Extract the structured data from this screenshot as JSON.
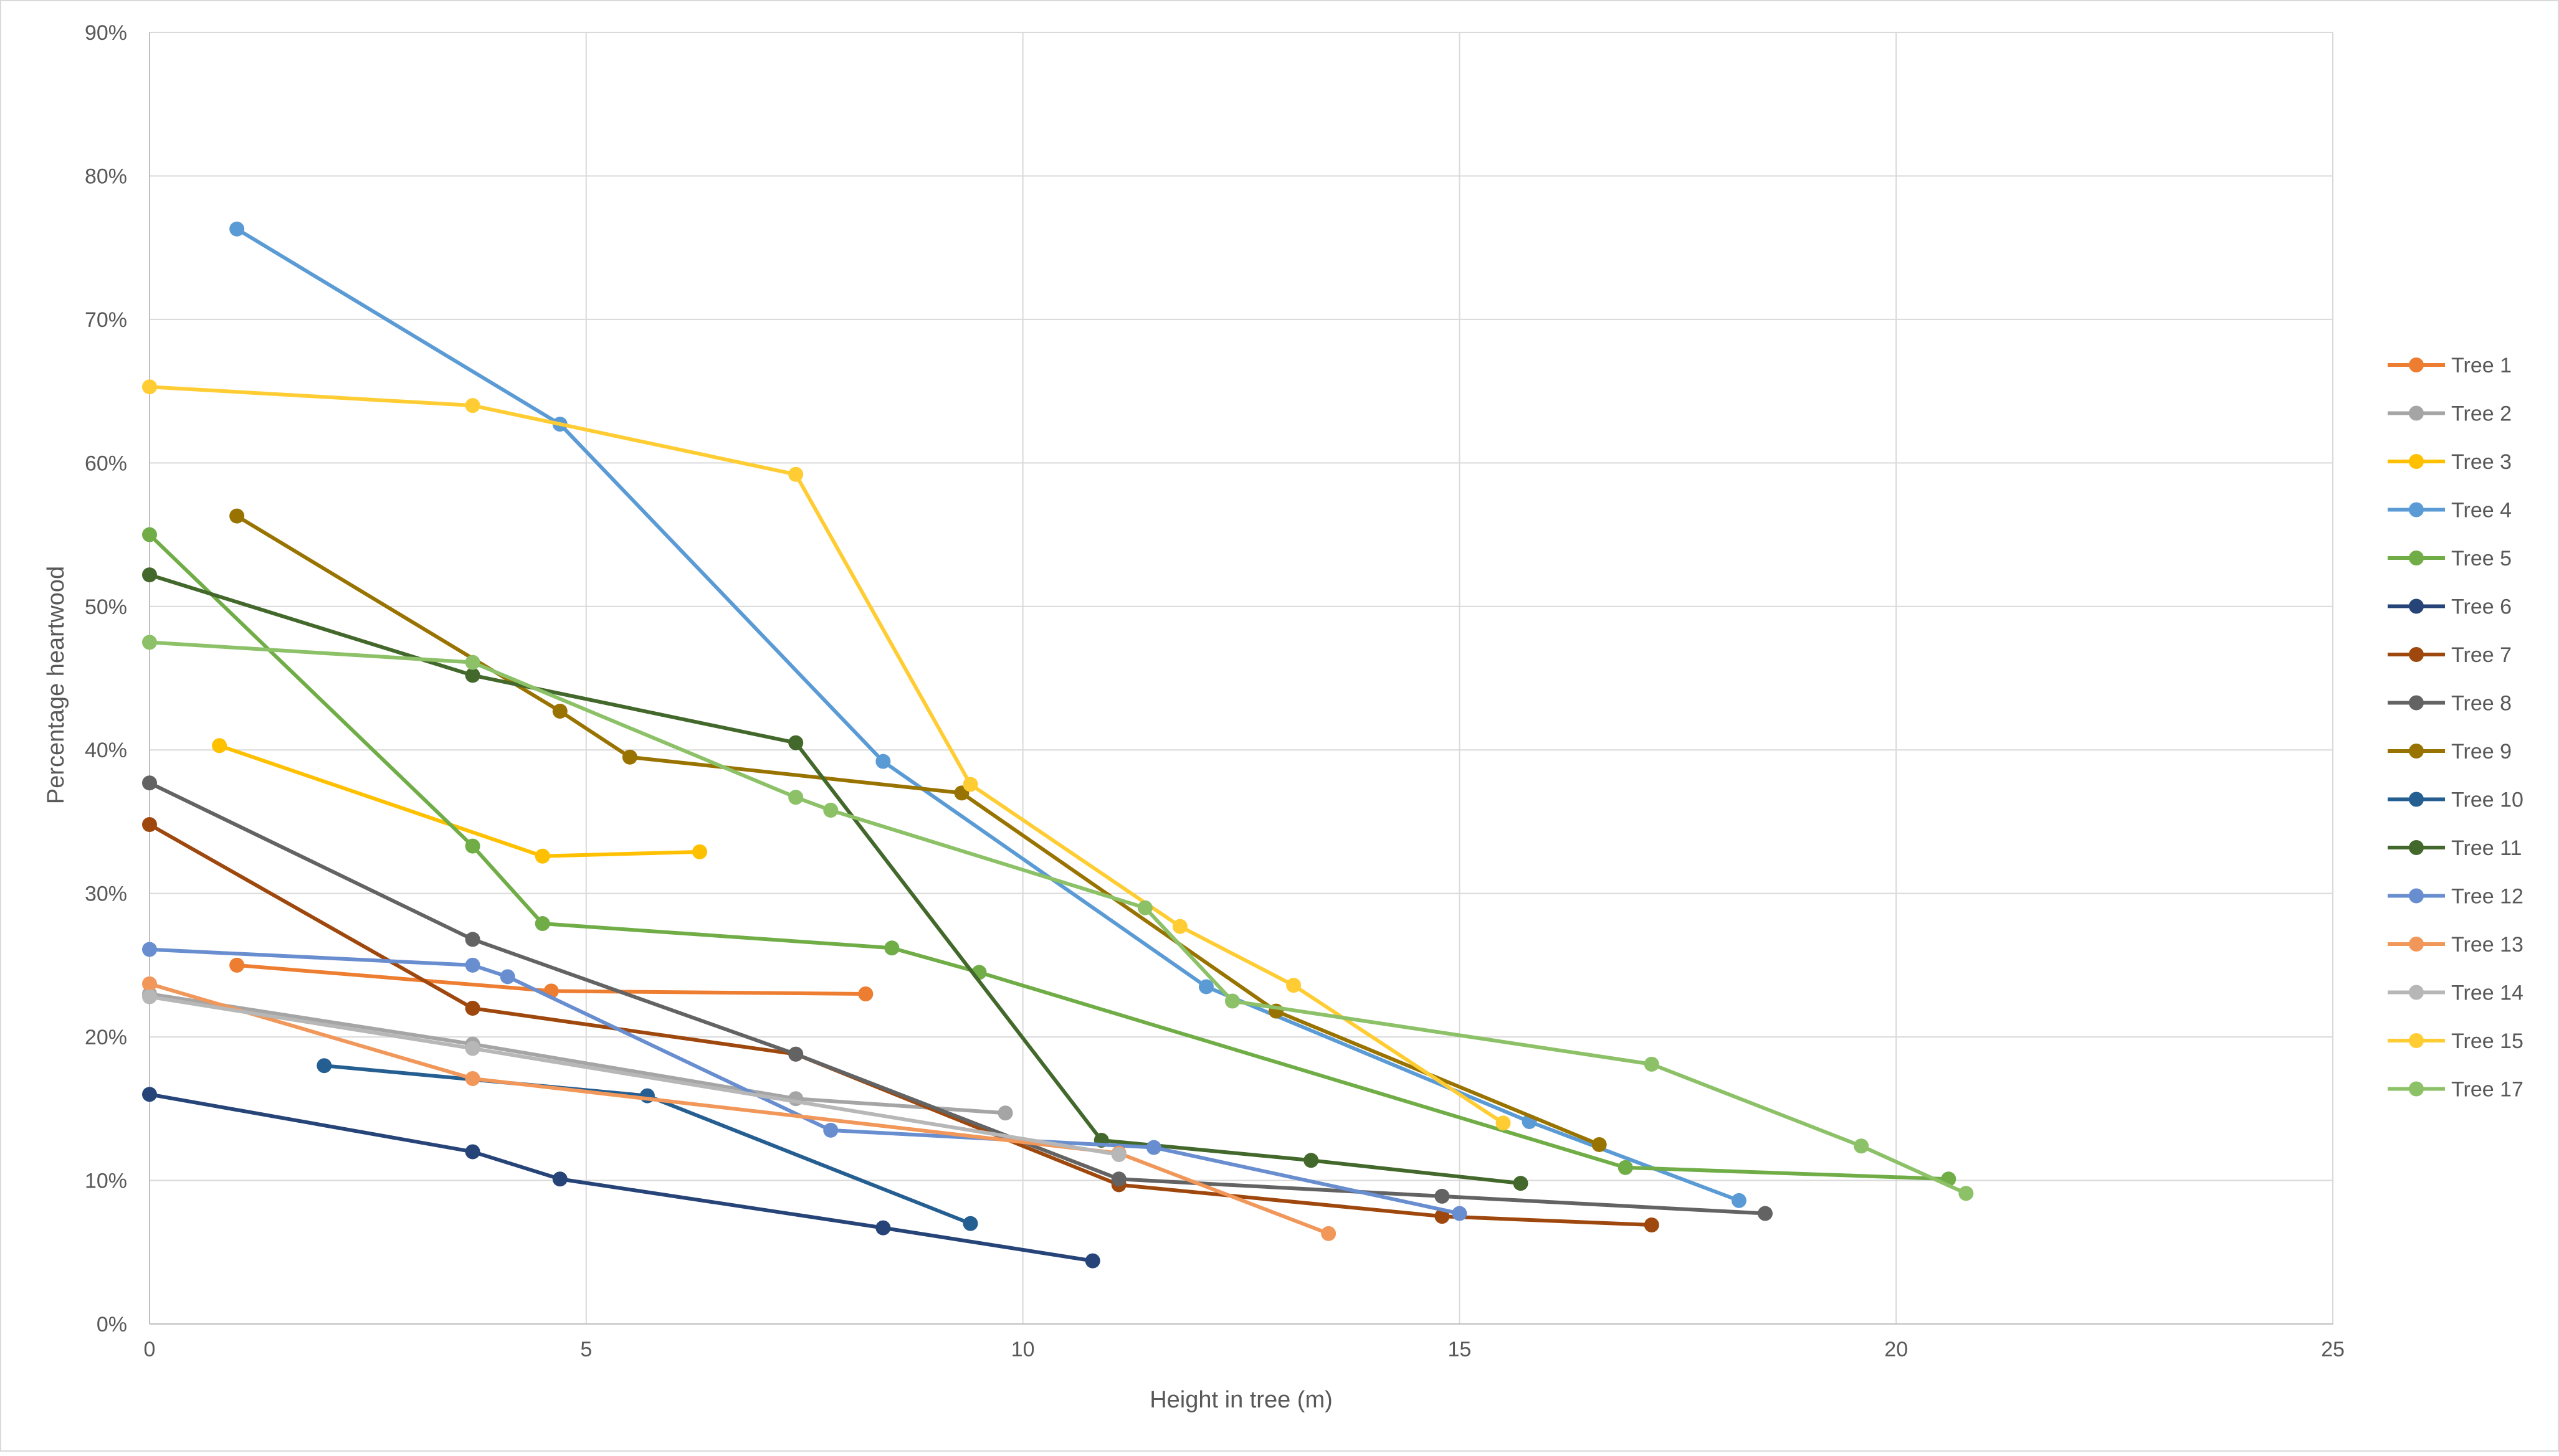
{
  "chart_data": {
    "type": "line",
    "title": "",
    "xlabel": "Height in tree (m)",
    "ylabel": "Percentage heartwood",
    "xlim": [
      0,
      25
    ],
    "ylim": [
      0,
      90
    ],
    "x_ticks": [
      0,
      5,
      10,
      15,
      20,
      25
    ],
    "y_ticks": [
      0,
      10,
      20,
      30,
      40,
      50,
      60,
      70,
      80,
      90
    ],
    "y_tick_labels": [
      "0%",
      "10%",
      "20%",
      "30%",
      "40%",
      "50%",
      "60%",
      "70%",
      "80%",
      "90%"
    ],
    "grid": true,
    "legend_position": "right",
    "series": [
      {
        "name": "Tree 1",
        "color": "#ED7D31",
        "x": [
          1,
          4.6,
          8.2
        ],
        "y": [
          25,
          23.2,
          23
        ]
      },
      {
        "name": "Tree 2",
        "color": "#A5A5A5",
        "x": [
          0,
          3.7,
          7.4,
          9.8
        ],
        "y": [
          23,
          19.5,
          15.7,
          14.7
        ]
      },
      {
        "name": "Tree 3",
        "color": "#FFC000",
        "x": [
          0.8,
          4.5,
          6.3
        ],
        "y": [
          40.3,
          32.6,
          32.9
        ]
      },
      {
        "name": "Tree 4",
        "color": "#5B9BD5",
        "x": [
          1,
          4.7,
          8.4,
          12.1,
          15.8,
          18.2
        ],
        "y": [
          76.3,
          62.7,
          39.2,
          23.5,
          14.1,
          8.6
        ]
      },
      {
        "name": "Tree 5",
        "color": "#70AD47",
        "x": [
          0,
          3.7,
          4.5,
          8.5,
          9.5,
          16.9,
          20.6
        ],
        "y": [
          55,
          33.3,
          27.9,
          26.2,
          24.5,
          10.9,
          10.1
        ]
      },
      {
        "name": "Tree 6",
        "color": "#264478",
        "x": [
          0,
          3.7,
          4.7,
          8.4,
          10.8
        ],
        "y": [
          16,
          12,
          10.1,
          6.7,
          4.4
        ]
      },
      {
        "name": "Tree 7",
        "color": "#9E480E",
        "x": [
          0,
          3.7,
          7.4,
          11.1,
          14.8,
          17.2
        ],
        "y": [
          34.8,
          22,
          18.8,
          9.7,
          7.5,
          6.9
        ]
      },
      {
        "name": "Tree 8",
        "color": "#636363",
        "x": [
          0,
          3.7,
          7.4,
          11.1,
          14.8,
          18.5
        ],
        "y": [
          37.7,
          26.8,
          18.8,
          10.1,
          8.9,
          7.7
        ]
      },
      {
        "name": "Tree 9",
        "color": "#997300",
        "x": [
          1,
          4.7,
          5.5,
          9.3,
          12.9,
          16.6
        ],
        "y": [
          56.3,
          42.7,
          39.5,
          37,
          21.8,
          12.5
        ]
      },
      {
        "name": "Tree 10",
        "color": "#255E91",
        "x": [
          2,
          5.7,
          9.4
        ],
        "y": [
          18,
          15.9,
          7
        ]
      },
      {
        "name": "Tree 11",
        "color": "#43682B",
        "x": [
          0,
          3.7,
          7.4,
          10.9,
          13.3,
          15.7
        ],
        "y": [
          52.2,
          45.2,
          40.5,
          12.8,
          11.4,
          9.8
        ]
      },
      {
        "name": "Tree 12",
        "color": "#698ED0",
        "x": [
          0,
          3.7,
          4.1,
          7.8,
          11.5,
          15
        ],
        "y": [
          26.1,
          25,
          24.2,
          13.5,
          12.3,
          7.7
        ]
      },
      {
        "name": "Tree 13",
        "color": "#F1975A",
        "x": [
          0,
          3.7,
          11.1,
          13.5
        ],
        "y": [
          23.7,
          17.1,
          11.9,
          6.3
        ]
      },
      {
        "name": "Tree 14",
        "color": "#B7B7B7",
        "x": [
          0,
          3.7,
          11.1
        ],
        "y": [
          22.8,
          19.2,
          11.8
        ]
      },
      {
        "name": "Tree 15",
        "color": "#FFCD33",
        "x": [
          0,
          3.7,
          7.4,
          9.4,
          11.8,
          13.1,
          15.5
        ],
        "y": [
          65.3,
          64,
          59.2,
          37.6,
          27.7,
          23.6,
          14
        ]
      },
      {
        "name": "Tree 17",
        "color": "#8CC168",
        "x": [
          0,
          3.7,
          7.4,
          7.8,
          11.4,
          12.4,
          17.2,
          19.6,
          20.8
        ],
        "y": [
          47.5,
          46.1,
          36.7,
          35.8,
          29,
          22.5,
          18.1,
          12.4,
          9.1
        ]
      }
    ]
  }
}
